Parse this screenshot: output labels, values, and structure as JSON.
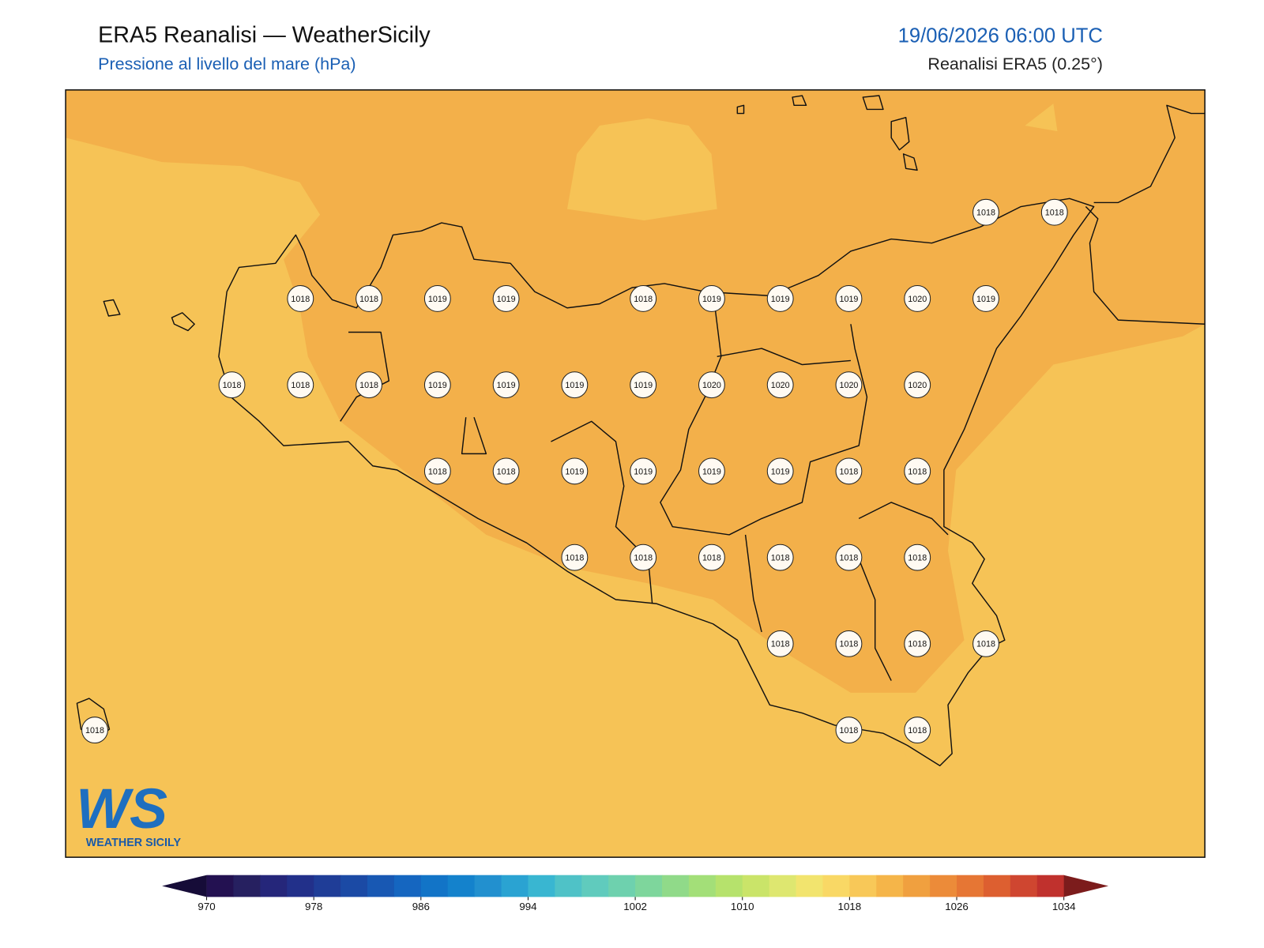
{
  "header": {
    "title": "ERA5 Reanalisi — WeatherSicily",
    "subtitle": "Pressione al livello del mare (hPa)",
    "timestamp": "19/06/2026 06:00 UTC",
    "source": "Reanalisi ERA5 (0.25°)"
  },
  "stations": {
    "rows": [
      [
        null,
        null,
        null,
        null,
        null,
        null,
        null,
        null,
        null,
        null,
        null,
        null,
        null,
        1018,
        1018
      ],
      [
        null,
        null,
        null,
        1018,
        1018,
        1019,
        1019,
        null,
        1018,
        1019,
        1019,
        1019,
        1020,
        1019,
        null
      ],
      [
        null,
        null,
        1018,
        1018,
        1018,
        1019,
        1019,
        1019,
        1019,
        1020,
        1020,
        1020,
        1020,
        null,
        null
      ],
      [
        null,
        null,
        null,
        null,
        null,
        1018,
        1018,
        1019,
        1019,
        1019,
        1019,
        1018,
        1018,
        null,
        null
      ],
      [
        null,
        null,
        null,
        null,
        null,
        null,
        null,
        1018,
        1018,
        1018,
        1018,
        1018,
        1018,
        null,
        null
      ],
      [
        null,
        null,
        null,
        null,
        null,
        null,
        null,
        null,
        null,
        null,
        1018,
        1018,
        1018,
        1018,
        null
      ],
      [
        1018,
        null,
        null,
        null,
        null,
        null,
        null,
        null,
        null,
        null,
        null,
        1018,
        1018,
        null,
        null
      ]
    ]
  },
  "colorbar": {
    "ticks": [
      970,
      978,
      986,
      994,
      1002,
      1010,
      1018,
      1026,
      1034
    ],
    "colors": [
      "#231151",
      "#262060",
      "#25267a",
      "#22308a",
      "#1f3d97",
      "#1b4aa5",
      "#1858b3",
      "#1566c0",
      "#1274c7",
      "#1482cc",
      "#2290cf",
      "#2aa3d2",
      "#39b6d1",
      "#4fc2c7",
      "#60cbbd",
      "#6ed1ae",
      "#7ed69c",
      "#90da89",
      "#a3df78",
      "#b6e26c",
      "#cae469",
      "#dee770",
      "#f2e46e",
      "#f9d865",
      "#f8c858",
      "#f5b549",
      "#f0a03f",
      "#ec8b39",
      "#e67634",
      "#dd5f30",
      "#cf4630",
      "#c0312d"
    ],
    "under": "#160c38",
    "over": "#7c1c1c"
  },
  "logo": {
    "letters": "WS",
    "name": "WEATHER SICILY"
  }
}
